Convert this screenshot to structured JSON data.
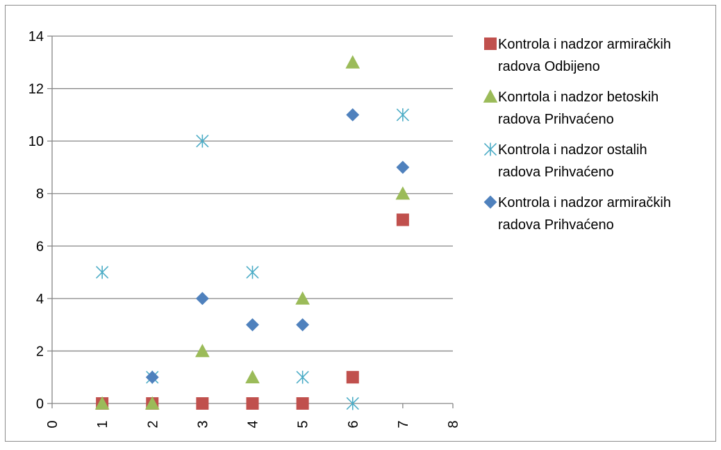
{
  "chart_data": {
    "type": "scatter",
    "title": "",
    "xlabel": "",
    "ylabel": "",
    "xlim": [
      0,
      8
    ],
    "ylim": [
      0,
      14
    ],
    "x_ticks": [
      0,
      1,
      2,
      3,
      4,
      5,
      6,
      7,
      8
    ],
    "y_ticks": [
      0,
      2,
      4,
      6,
      8,
      10,
      12,
      14
    ],
    "grid": "horizontal",
    "legend_position": "right",
    "series": [
      {
        "name_lines": [
          "Kontrola i nadzor armiračkih",
          "radova Odbijeno"
        ],
        "marker": "square",
        "color": "#C0504D",
        "x": [
          1,
          2,
          3,
          4,
          5,
          6,
          7
        ],
        "y": [
          0,
          0,
          0,
          0,
          0,
          1,
          7
        ]
      },
      {
        "name_lines": [
          "Konrtola i nadzor betoskih",
          "radova Prihvaćeno"
        ],
        "marker": "triangle",
        "color": "#9BBB59",
        "x": [
          1,
          2,
          3,
          4,
          5,
          6,
          7
        ],
        "y": [
          0,
          0,
          2,
          1,
          4,
          13,
          8
        ]
      },
      {
        "name_lines": [
          "Kontrola i nadzor ostalih",
          "radova Prihvaćeno"
        ],
        "marker": "asterisk",
        "color": "#4BACC6",
        "x": [
          1,
          2,
          3,
          4,
          5,
          6,
          7
        ],
        "y": [
          5,
          1,
          10,
          5,
          1,
          0,
          11
        ]
      },
      {
        "name_lines": [
          "Kontrola i nadzor armiračkih",
          "radova Prihvaćeno"
        ],
        "marker": "diamond",
        "color": "#4F81BD",
        "x": [
          2,
          3,
          4,
          5,
          6,
          7
        ],
        "y": [
          1,
          4,
          3,
          3,
          11,
          9
        ]
      }
    ]
  }
}
